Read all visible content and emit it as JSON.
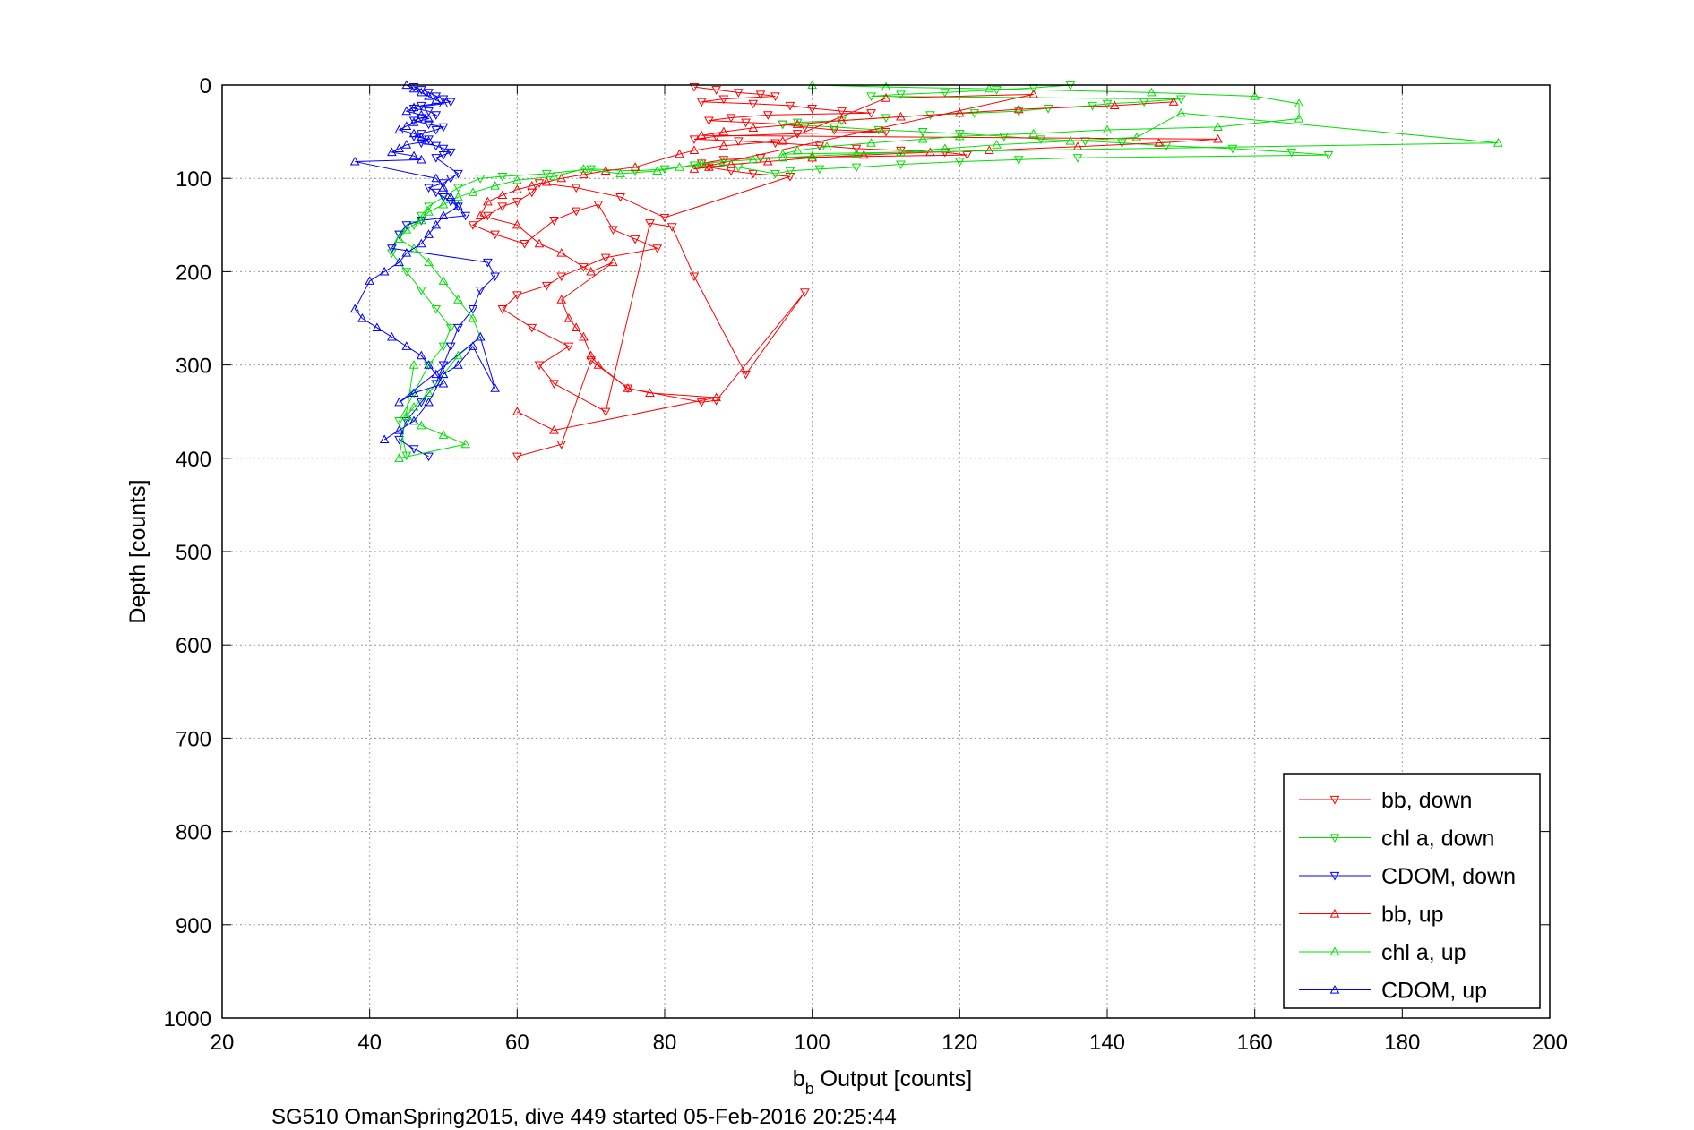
{
  "chart_data": {
    "type": "scatter",
    "title": "",
    "xlabel_main": "b",
    "xlabel_sub": "b",
    "xlabel_rest": " Output [counts]",
    "ylabel": "Depth [counts]",
    "caption": "SG510 OmanSpring2015, dive 449 started 05-Feb-2016 20:25:44",
    "xlim": [
      20,
      200
    ],
    "ylim": [
      0,
      1000
    ],
    "y_reversed": true,
    "grid": true,
    "legend_position": "lower-right",
    "xticks": [
      "20",
      "40",
      "60",
      "80",
      "100",
      "120",
      "140",
      "160",
      "180",
      "200"
    ],
    "yticks": [
      "0",
      "100",
      "200",
      "300",
      "400",
      "500",
      "600",
      "700",
      "800",
      "900",
      "1000"
    ],
    "series": [
      {
        "name": "bb, down",
        "color": "#ff0000",
        "marker": "triangle-down",
        "x": [
          84,
          87,
          90,
          93,
          95,
          88,
          85,
          92,
          97,
          100,
          104,
          108,
          94,
          89,
          86,
          91,
          96,
          99,
          103,
          110,
          98,
          87,
          84,
          90,
          95,
          101,
          106,
          112,
          118,
          121,
          93,
          88,
          85,
          86,
          89,
          92,
          97,
          80,
          74,
          68,
          63,
          62,
          60,
          58,
          56,
          54,
          57,
          61,
          65,
          68,
          71,
          73,
          76,
          79,
          72,
          69,
          66,
          64,
          60,
          58,
          62,
          67,
          63,
          65,
          72,
          78,
          81,
          84,
          91,
          99,
          87,
          85,
          75,
          70,
          66,
          60
        ],
        "y": [
          2,
          5,
          8,
          10,
          12,
          15,
          18,
          20,
          22,
          25,
          28,
          30,
          32,
          35,
          38,
          40,
          42,
          45,
          48,
          50,
          52,
          55,
          58,
          60,
          62,
          65,
          68,
          70,
          72,
          75,
          78,
          80,
          84,
          88,
          92,
          95,
          98,
          142,
          120,
          110,
          105,
          115,
          125,
          130,
          140,
          150,
          160,
          170,
          145,
          135,
          128,
          155,
          165,
          175,
          185,
          195,
          205,
          215,
          225,
          240,
          260,
          280,
          300,
          320,
          350,
          148,
          152,
          205,
          310,
          222,
          338,
          340,
          325,
          295,
          385,
          398
        ]
      },
      {
        "name": "chl a, down",
        "color": "#00e000",
        "marker": "triangle-down",
        "x": [
          135,
          130,
          125,
          118,
          112,
          108,
          150,
          145,
          140,
          138,
          132,
          128,
          122,
          116,
          110,
          104,
          98,
          96,
          103,
          109,
          115,
          120,
          126,
          131,
          137,
          142,
          148,
          157,
          165,
          170,
          136,
          128,
          120,
          112,
          106,
          101,
          97,
          95,
          90,
          84,
          80,
          76,
          70,
          64,
          58,
          55,
          52,
          50,
          48,
          47,
          46,
          44,
          43,
          45,
          47,
          49,
          51,
          50,
          48,
          46,
          44,
          45
        ],
        "y": [
          0,
          3,
          5,
          8,
          10,
          12,
          15,
          18,
          20,
          22,
          25,
          28,
          30,
          32,
          35,
          38,
          40,
          42,
          45,
          48,
          50,
          52,
          55,
          58,
          60,
          62,
          65,
          68,
          72,
          75,
          78,
          80,
          82,
          85,
          88,
          90,
          92,
          95,
          88,
          86,
          90,
          92,
          90,
          95,
          98,
          100,
          110,
          120,
          130,
          140,
          150,
          160,
          180,
          200,
          220,
          240,
          260,
          280,
          300,
          330,
          360,
          397
        ]
      },
      {
        "name": "CDOM, down",
        "color": "#0000ff",
        "marker": "triangle-down",
        "x": [
          46,
          47,
          48,
          49,
          50,
          51,
          47,
          46,
          48,
          49,
          47,
          46,
          48,
          50,
          49,
          47,
          46,
          48,
          47,
          49,
          50,
          51,
          50,
          49,
          52,
          51,
          50,
          48,
          49,
          50,
          51,
          52,
          53,
          47,
          45,
          44,
          43,
          56,
          57,
          55,
          54,
          52,
          51,
          50,
          49,
          47,
          45,
          44,
          46,
          48
        ],
        "y": [
          2,
          5,
          8,
          12,
          15,
          18,
          22,
          25,
          28,
          32,
          35,
          38,
          42,
          45,
          48,
          52,
          55,
          58,
          62,
          65,
          68,
          72,
          75,
          78,
          95,
          100,
          105,
          110,
          115,
          120,
          125,
          130,
          140,
          145,
          150,
          160,
          175,
          190,
          205,
          220,
          240,
          260,
          280,
          300,
          320,
          340,
          360,
          380,
          390,
          398
        ]
      },
      {
        "name": "bb, up",
        "color": "#ff0000",
        "marker": "triangle-up",
        "x": [
          149,
          141,
          128,
          120,
          112,
          104,
          98,
          92,
          88,
          85,
          155,
          147,
          136,
          124,
          116,
          107,
          100,
          94,
          89,
          86,
          84,
          130,
          110,
          96,
          88,
          84,
          82,
          76,
          72,
          69,
          66,
          64,
          62,
          60,
          58,
          56,
          55,
          60,
          63,
          66,
          70,
          73,
          66,
          67,
          68,
          69,
          70,
          71,
          75,
          78,
          87,
          65,
          60
        ],
        "y": [
          18,
          22,
          26,
          30,
          34,
          38,
          42,
          46,
          50,
          54,
          58,
          62,
          66,
          70,
          72,
          75,
          78,
          82,
          85,
          88,
          90,
          10,
          14,
          60,
          65,
          70,
          74,
          88,
          92,
          96,
          100,
          104,
          108,
          112,
          118,
          125,
          140,
          150,
          170,
          180,
          200,
          190,
          230,
          250,
          260,
          270,
          290,
          300,
          325,
          330,
          335,
          370,
          350
        ]
      },
      {
        "name": "chl a, up",
        "color": "#00e000",
        "marker": "triangle-up",
        "x": [
          100,
          110,
          124,
          146,
          160,
          166,
          166,
          155,
          140,
          130,
          120,
          115,
          108,
          102,
          98,
          96,
          193,
          150,
          144,
          135,
          125,
          118,
          112,
          106,
          100,
          96,
          92,
          88,
          85,
          82,
          79,
          74,
          69,
          65,
          60,
          57,
          54,
          52,
          50,
          48,
          47,
          45,
          44,
          46,
          48,
          50,
          52,
          54,
          55,
          52,
          50,
          48,
          46,
          45,
          47,
          50,
          53,
          44,
          46
        ],
        "y": [
          0,
          2,
          4,
          8,
          12,
          20,
          36,
          45,
          48,
          52,
          55,
          58,
          62,
          66,
          70,
          74,
          62,
          30,
          56,
          60,
          64,
          68,
          72,
          74,
          76,
          78,
          80,
          82,
          84,
          88,
          92,
          95,
          90,
          98,
          102,
          108,
          115,
          120,
          128,
          136,
          145,
          155,
          165,
          175,
          190,
          210,
          230,
          250,
          270,
          290,
          310,
          330,
          345,
          355,
          365,
          375,
          385,
          400,
          300
        ]
      },
      {
        "name": "CDOM, up",
        "color": "#0000ff",
        "marker": "triangle-up",
        "x": [
          45,
          46,
          47,
          48,
          49,
          50,
          46,
          45,
          47,
          48,
          46,
          45,
          44,
          46,
          47,
          48,
          45,
          44,
          43,
          46,
          47,
          38,
          49,
          50,
          51,
          52,
          50,
          49,
          48,
          47,
          45,
          44,
          42,
          40,
          38,
          39,
          41,
          43,
          45,
          47,
          48,
          49,
          50,
          46,
          44,
          55,
          57,
          54,
          52,
          50,
          48,
          46,
          44,
          42
        ],
        "y": [
          0,
          4,
          8,
          12,
          16,
          20,
          24,
          28,
          32,
          36,
          40,
          44,
          48,
          52,
          56,
          60,
          64,
          68,
          72,
          76,
          80,
          82,
          100,
          110,
          120,
          130,
          140,
          150,
          160,
          170,
          180,
          190,
          200,
          210,
          240,
          250,
          260,
          270,
          280,
          290,
          300,
          310,
          320,
          330,
          340,
          270,
          325,
          280,
          300,
          310,
          340,
          360,
          370,
          380
        ]
      }
    ]
  }
}
